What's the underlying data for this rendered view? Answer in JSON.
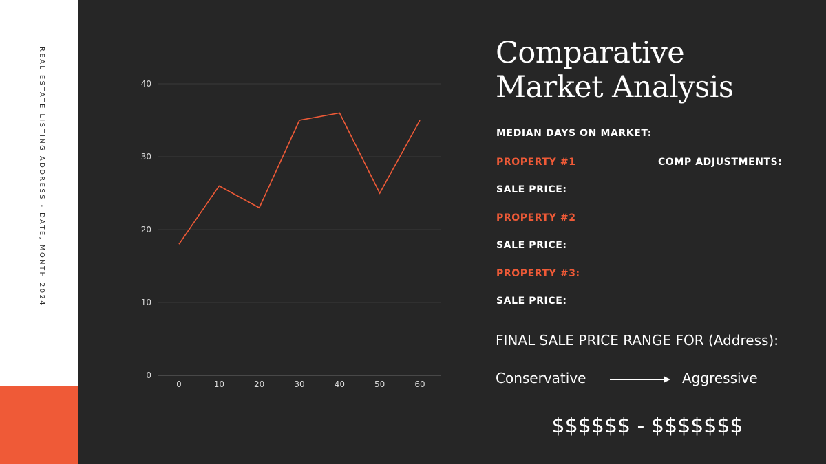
{
  "sidebar": {
    "caption": "REAL ESTATE LISTING ADDRESS - DATE, MONTH 2024"
  },
  "colors": {
    "accent": "#ef5a37",
    "background": "#262626",
    "sidebar": "#ffffff"
  },
  "heading": {
    "line1": "Comparative",
    "line2": "Market Analysis"
  },
  "details": {
    "median_days": "MEDIAN DAYS ON MARKET:",
    "property1": "PROPERTY #1",
    "comp_adjustments": "COMP ADJUSTMENTS:",
    "sale_price1": "SALE PRICE:",
    "property2": "PROPERTY #2",
    "sale_price2": "SALE PRICE:",
    "property3": "PROPERTY #3:",
    "sale_price3": "SALE PRICE:"
  },
  "price_range": {
    "title": "FINAL SALE PRICE RANGE FOR (Address):",
    "low_label": "Conservative",
    "high_label": "Aggressive",
    "value": "$$$$$$ - $$$$$$$",
    "arrow_icon": "arrow-right-icon"
  },
  "chart_data": {
    "type": "line",
    "x": [
      0,
      10,
      20,
      30,
      40,
      50,
      60
    ],
    "series": [
      {
        "values": [
          18,
          26,
          23,
          35,
          36,
          25,
          35
        ],
        "color": "#ef5a37"
      }
    ],
    "xticks": [
      "0",
      "10",
      "20",
      "30",
      "40",
      "50",
      "60"
    ],
    "yticks": [
      "0",
      "10",
      "20",
      "30",
      "40"
    ],
    "xlim": [
      0,
      60
    ],
    "ylim": [
      0,
      40
    ],
    "grid": true,
    "title": "",
    "xlabel": "",
    "ylabel": ""
  }
}
